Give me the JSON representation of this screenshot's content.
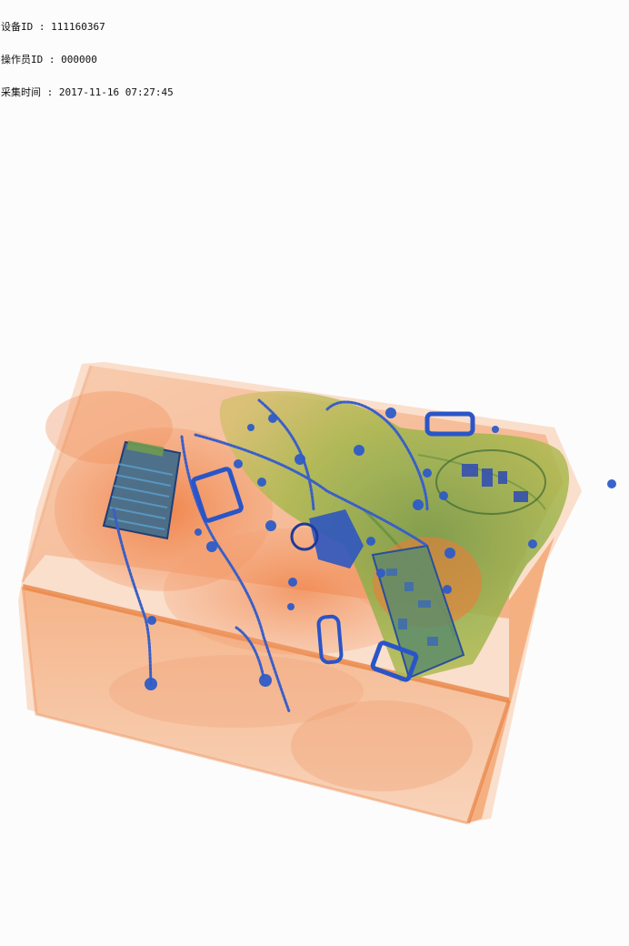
{
  "scan_info": {
    "device_id_label": "设备ID",
    "device_id_value": "111160367",
    "operator_id_label": "操作员ID",
    "operator_id_value": "000000",
    "capture_time_label": "采集时间",
    "capture_time_value": "2017-11-16 07:27:45",
    "separator": " : "
  },
  "palette": {
    "background": "#fcfcfc",
    "organic": "#f08a4b",
    "organic_light": "#f6c3a2",
    "mixed": "#8fb04a",
    "metal": "#2a55c8",
    "metal_dark": "#1d3a9a"
  },
  "objects": [
    {
      "name": "suitcase",
      "material": "organic"
    },
    {
      "name": "backpack",
      "material": "mixed"
    },
    {
      "name": "circuit-board",
      "material": "mixed"
    },
    {
      "name": "zippers",
      "material": "metal"
    },
    {
      "name": "buckles",
      "material": "metal"
    },
    {
      "name": "electronic-device",
      "material": "mixed"
    }
  ]
}
